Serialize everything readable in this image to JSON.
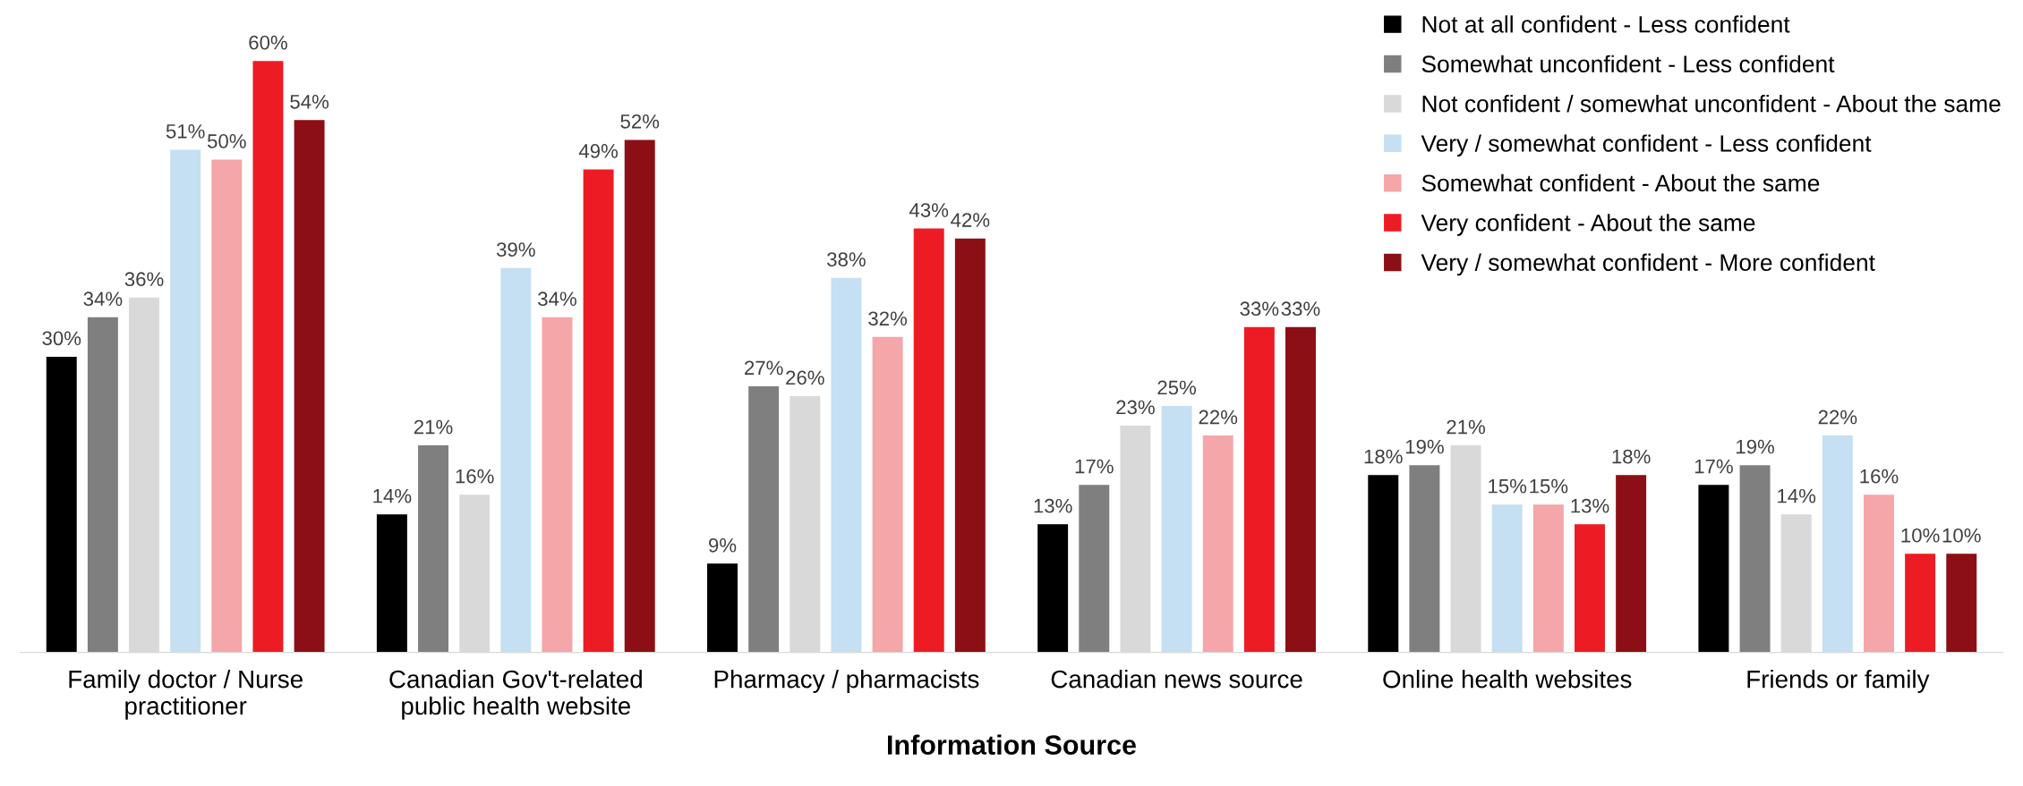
{
  "chart_data": {
    "type": "bar",
    "xlabel": "Information Source",
    "categories": [
      "Family doctor / Nurse\npractitioner",
      "Canadian Gov't-related\npublic health website",
      "Pharmacy / pharmacists",
      "Canadian news source",
      "Online health websites",
      "Friends or family"
    ],
    "series": [
      {
        "name": "Not at all confident - Less confident",
        "color": "#000000",
        "values": [
          30,
          14,
          9,
          13,
          18,
          17
        ],
        "value_labels": [
          "30%",
          "14%",
          "9%",
          "13%",
          "18%",
          "17%"
        ]
      },
      {
        "name": "Somewhat unconfident - Less confident",
        "color": "#7f7f7f",
        "values": [
          34,
          21,
          27,
          17,
          19,
          19
        ],
        "value_labels": [
          "34%",
          "21%",
          "27%",
          "17%",
          "19%",
          "19%"
        ]
      },
      {
        "name": "Not confident / somewhat unconfident - About the same",
        "color": "#d9d9d9",
        "values": [
          36,
          16,
          26,
          23,
          21,
          14
        ],
        "value_labels": [
          "36%",
          "16%",
          "26%",
          "23%",
          "21%",
          "14%"
        ]
      },
      {
        "name": "Very / somewhat confident - Less confident",
        "color": "#c5dff3",
        "values": [
          51,
          39,
          38,
          25,
          15,
          22
        ],
        "value_labels": [
          "51%",
          "39%",
          "38%",
          "25%",
          "15%",
          "22%"
        ]
      },
      {
        "name": "Somewhat confident - About the same",
        "color": "#f4a6a8",
        "values": [
          50,
          34,
          32,
          22,
          15,
          16
        ],
        "value_labels": [
          "50%",
          "34%",
          "32%",
          "22%",
          "15%",
          "16%"
        ]
      },
      {
        "name": "Very confident - About the same",
        "color": "#ed1c24",
        "values": [
          60,
          49,
          43,
          33,
          13,
          10
        ],
        "value_labels": [
          "60%",
          "49%",
          "43%",
          "33%",
          "13%",
          "10%"
        ]
      },
      {
        "name": "Very / somewhat confident - More confident",
        "color": "#8b0f14",
        "values": [
          54,
          52,
          42,
          33,
          18,
          10
        ],
        "value_labels": [
          "54%",
          "52%",
          "42%",
          "33%",
          "18%",
          "10%"
        ]
      }
    ],
    "legend": "top right",
    "tick_labels": "x",
    "grid": false
  }
}
